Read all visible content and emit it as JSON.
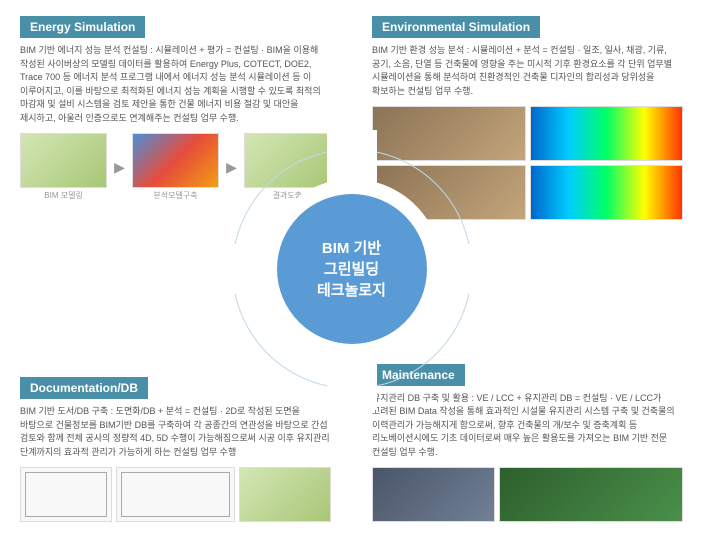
{
  "center": {
    "line1": "BIM 기반",
    "line2": "그린빌딩",
    "line3": "테크놀로지"
  },
  "tl": {
    "title": "Energy Simulation",
    "desc": "BIM 기반 에너지 성능 분석 컨설팅 : 시뮬레이션 + 평가 = 컨설팅 · BIM을 이용해 작성된 사이버상의 모델링 데이터를 활용하여 Energy Plus, COTECT, DOE2, Trace 700 등  에너지 분석 프로그램 내에서 에너지 성능 분석 시뮬레이션 등 이 이루어지고, 이를 바탕으로 최적화된 에너지 성능 계획을 시행할 수 있도록 최적의 마감재 및 설비 시스템을 검토 제안을 통한 건물 에너지 비용 절감 및 대안을 제시하고,   아울러 인증으로도 연계해주는 컨설팅 업무 수행.",
    "labels": [
      "BIM 모델링",
      "분석모델구축",
      "결과도출"
    ]
  },
  "tr": {
    "title": "Environmental Simulation",
    "desc": "BIM 기반 환경 성능 분석 : 시뮬레이션 + 분석 = 컨설팅 · 일조, 일사, 채광, 기류, 공기, 소음, 단열 등 건축물에 영향을 주는 미시적 기후 환경요소를 각 단위 업무별  시뮬레이션을 통해 분석하여 친환경적인 건축물  디자인의 합리성과 당위성을 확보하는 컨설팅 업무 수행."
  },
  "bl": {
    "title": "Documentation/DB",
    "desc": "BIM 기반 도서/DB 구축 :  도면화/DB + 분석 = 컨설팅 · 2D로 작성된 도면을 바탕으로  건물정보를  BIM기반 DB를 구축하여 각 공종간의  연관성을 바탕으로 간섭 검토와 함께 전체 공사의 정량적 4D, 5D 수행이 가능해짐으로써 시공 이후 유지관리 단계까지의 효과적 관리가 가능하게 하는 컨설팅 업무 수행"
  },
  "br": {
    "title": "Maintenance",
    "desc": "유지관리 DB 구축 및 활용 :  VE / LCC + 유지관리 DB = 컨설팅 · VE / LCC가 고려된 BIM Data 작성을 통해 효과적인 시설물 유지관리 시스템 구축 및 건축물의 이력관리가 가능해지게 함으로써, 향후 건축물의 개/보수 및 증축계획 등 리노베이션시에도 기초 데이터로써 매우 높은 활용도를 가져오는 BIM 기반 전문 컨설팅 업무 수행."
  },
  "colors": {
    "accent": "#4a8fa8",
    "circle": "#5b9bd5",
    "text": "#555"
  }
}
